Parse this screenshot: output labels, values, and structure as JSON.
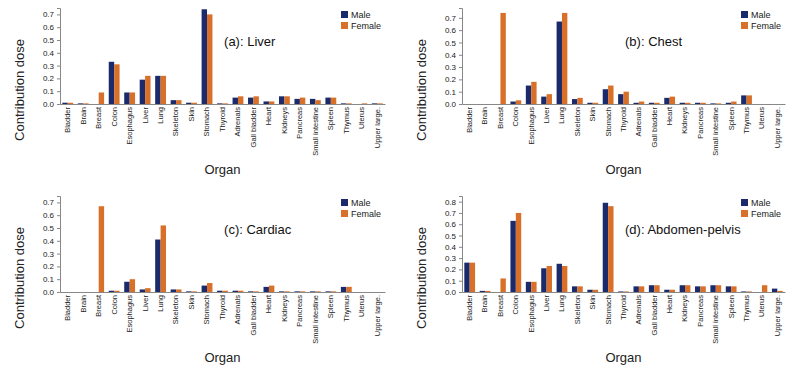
{
  "chart_data": [
    {
      "type": "bar",
      "title": "(a): Liver",
      "x_label": "Organ",
      "y_label": "Contribution dose",
      "categories": [
        "Bladder",
        "Brain",
        "Breast",
        "Colon",
        "Esophagus",
        "Liver",
        "Lung",
        "Skeleton",
        "Skin",
        "Stomach",
        "Thyroid",
        "Adrenals",
        "Gall bladder",
        "Heart",
        "Kidneys",
        "Pancreas",
        "Small intestine",
        "Spleen",
        "Thymus",
        "Uterus",
        "Upper large."
      ],
      "series": [
        {
          "name": "Male",
          "color": "#1b2a6b",
          "values": [
            0.01,
            0.005,
            0,
            0.33,
            0.09,
            0.19,
            0.22,
            0.03,
            0.01,
            0.74,
            0.005,
            0.05,
            0.05,
            0.02,
            0.06,
            0.04,
            0.04,
            0.05,
            0.005,
            0,
            0.005
          ]
        },
        {
          "name": "Female",
          "color": "#d9702a",
          "values": [
            0.01,
            0.005,
            0.09,
            0.31,
            0.09,
            0.22,
            0.22,
            0.03,
            0.01,
            0.7,
            0.005,
            0.06,
            0.06,
            0.02,
            0.06,
            0.05,
            0.03,
            0.05,
            0.005,
            0.005,
            0.005
          ]
        }
      ],
      "ylim": [
        0,
        0.75
      ],
      "yticks": [
        {
          "value": 0,
          "label": "0.0"
        },
        0.1,
        0.2,
        0.3,
        0.4,
        0.5,
        0.6,
        0.7
      ],
      "grid": false,
      "legend": "top-right"
    },
    {
      "type": "bar",
      "title": "(b): Chest",
      "x_label": "Organ",
      "y_label": "Contribution dose",
      "categories": [
        "Bladder",
        "Brain",
        "Breast",
        "Colon",
        "Esophagus",
        "Liver",
        "Lung",
        "Skeleton",
        "Skin",
        "Stomach",
        "Thyroid",
        "Adrenals",
        "Gall bladder",
        "Heart",
        "Kidneys",
        "Pancreas",
        "Small intestine",
        "Spleen",
        "Thymus",
        "Uterus",
        "Upper large."
      ],
      "series": [
        {
          "name": "Male",
          "color": "#1b2a6b",
          "values": [
            0,
            0,
            0,
            0.02,
            0.15,
            0.06,
            0.67,
            0.04,
            0.01,
            0.12,
            0.08,
            0.01,
            0.01,
            0.05,
            0.01,
            0.01,
            0.005,
            0.01,
            0.07,
            0,
            0
          ]
        },
        {
          "name": "Female",
          "color": "#d9702a",
          "values": [
            0,
            0,
            0.74,
            0.03,
            0.18,
            0.08,
            0.74,
            0.05,
            0.01,
            0.15,
            0.1,
            0.02,
            0.01,
            0.06,
            0.01,
            0.01,
            0.005,
            0.02,
            0.07,
            0,
            0
          ]
        }
      ],
      "ylim": [
        0,
        0.78
      ],
      "yticks": [
        {
          "value": 0,
          "label": "0.0"
        },
        0.1,
        0.2,
        0.3,
        0.4,
        0.5,
        0.6,
        0.7
      ],
      "grid": false,
      "legend": "top-right"
    },
    {
      "type": "bar",
      "title": "(c): Cardiac",
      "x_label": "Organ",
      "y_label": "Contribution dose",
      "categories": [
        "Bladder",
        "Brain",
        "Breast",
        "Colon",
        "Esophagus",
        "Liver",
        "Lung",
        "Skeleton",
        "Skin",
        "Stomach",
        "Thyroid",
        "Adrenals",
        "Gall bladder",
        "Heart",
        "Kidneys",
        "Pancreas",
        "Small intestine",
        "Spleen",
        "Thymus",
        "Uterus",
        "Upper large."
      ],
      "series": [
        {
          "name": "Male",
          "color": "#1b2a6b",
          "values": [
            0,
            0,
            0,
            0.01,
            0.08,
            0.02,
            0.41,
            0.02,
            0.005,
            0.05,
            0.01,
            0.01,
            0.005,
            0.04,
            0.005,
            0.005,
            0.005,
            0.005,
            0.04,
            0,
            0
          ]
        },
        {
          "name": "Female",
          "color": "#d9702a",
          "values": [
            0,
            0,
            0.67,
            0.01,
            0.1,
            0.03,
            0.52,
            0.02,
            0.005,
            0.07,
            0.01,
            0.01,
            0.005,
            0.05,
            0.005,
            0.005,
            0.005,
            0.005,
            0.04,
            0,
            0
          ]
        }
      ],
      "ylim": [
        0,
        0.75
      ],
      "yticks": [
        {
          "value": 0,
          "label": "0.0"
        },
        0.1,
        0.2,
        0.3,
        0.4,
        0.5,
        0.6,
        0.7
      ],
      "grid": false,
      "legend": "top-right"
    },
    {
      "type": "bar",
      "title": "(d): Abdomen-pelvis",
      "x_label": "Organ",
      "y_label": "Contribution dose",
      "categories": [
        "Bladder",
        "Brain",
        "Breast",
        "Colon",
        "Esophagus",
        "Liver",
        "Lung",
        "Skeleton",
        "Skin",
        "Stomach",
        "Thyroid",
        "Adrenals",
        "Gall bladder",
        "Heart",
        "Kidneys",
        "Pancreas",
        "Small intestine",
        "Spleen",
        "Thymus",
        "Uterus",
        "Upper large."
      ],
      "series": [
        {
          "name": "Male",
          "color": "#1b2a6b",
          "values": [
            0.26,
            0.01,
            0,
            0.63,
            0.09,
            0.21,
            0.25,
            0.05,
            0.02,
            0.79,
            0.005,
            0.05,
            0.06,
            0.02,
            0.06,
            0.05,
            0.06,
            0.05,
            0.005,
            0,
            0.03
          ]
        },
        {
          "name": "Female",
          "color": "#d9702a",
          "values": [
            0.26,
            0.01,
            0.12,
            0.7,
            0.09,
            0.23,
            0.23,
            0.05,
            0.02,
            0.76,
            0.005,
            0.05,
            0.06,
            0.02,
            0.06,
            0.05,
            0.06,
            0.05,
            0.005,
            0.06,
            0.01
          ]
        }
      ],
      "ylim": [
        0,
        0.85
      ],
      "yticks": [
        {
          "value": 0,
          "label": "0.0"
        },
        0.1,
        0.2,
        0.3,
        0.4,
        0.5,
        0.6,
        0.7,
        0.8
      ],
      "grid": false,
      "legend": "top-right"
    }
  ]
}
